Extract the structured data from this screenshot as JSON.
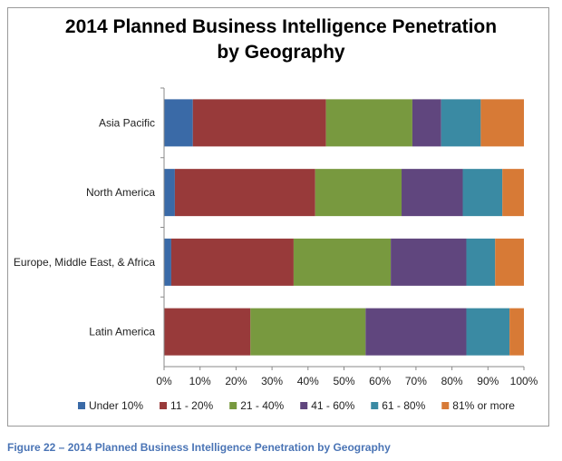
{
  "chart_data": {
    "type": "bar",
    "orientation": "horizontal",
    "stacked": "percent",
    "title": "2014 Planned Business Intelligence Penetration by Geography",
    "title_lines": [
      "2014 Planned Business Intelligence Penetration",
      "by Geography"
    ],
    "categories": [
      "Asia Pacific",
      "North America",
      "Europe, Middle East, & Africa",
      "Latin America"
    ],
    "series": [
      {
        "name": "Under 10%",
        "color": "#3a6aa7",
        "values": [
          8,
          3,
          2,
          0
        ]
      },
      {
        "name": "11 - 20%",
        "color": "#983a3a",
        "values": [
          37,
          39,
          34,
          24
        ]
      },
      {
        "name": "21 - 40%",
        "color": "#78993f",
        "values": [
          24,
          24,
          27,
          32
        ]
      },
      {
        "name": "41 - 60%",
        "color": "#60467e",
        "values": [
          8,
          17,
          21,
          28
        ]
      },
      {
        "name": "61 - 80%",
        "color": "#3a8aa3",
        "values": [
          11,
          11,
          8,
          12
        ]
      },
      {
        "name": "81% or more",
        "color": "#d77a36",
        "values": [
          12,
          6,
          8,
          4
        ]
      }
    ],
    "xlim": [
      0,
      100
    ],
    "xticks": [
      "0%",
      "10%",
      "20%",
      "30%",
      "40%",
      "50%",
      "60%",
      "70%",
      "80%",
      "90%",
      "100%"
    ],
    "xlabel": "",
    "ylabel": "",
    "grid": false,
    "legend_position": "bottom"
  },
  "caption": "Figure 22 – 2014 Planned Business Intelligence Penetration by Geography"
}
